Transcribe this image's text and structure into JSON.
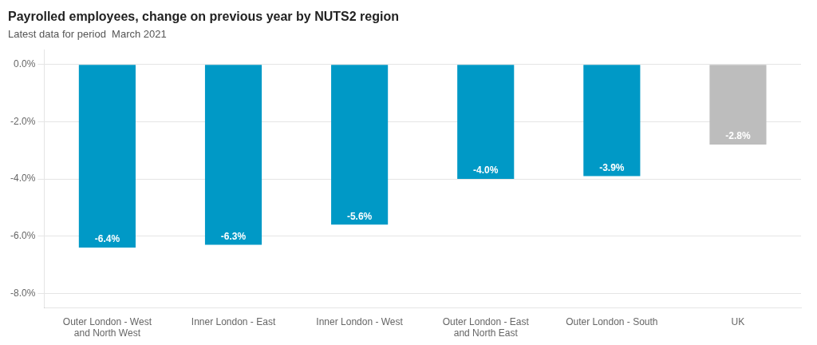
{
  "chart_data": {
    "type": "bar",
    "title": "Payrolled employees, change on previous year by NUTS2 region",
    "subtitle": "Latest data for period  March 2021",
    "categories": [
      "Outer London - West\nand North West",
      "Inner London - East",
      "Inner London - West",
      "Outer London - East\nand North East",
      "Outer London - South",
      "UK"
    ],
    "values": [
      -6.4,
      -6.3,
      -5.6,
      -4.0,
      -3.9,
      -2.8
    ],
    "value_labels": [
      "-6.4%",
      "-6.3%",
      "-5.6%",
      "-4.0%",
      "-3.9%",
      "-2.8%"
    ],
    "colors": [
      "#0099C6",
      "#0099C6",
      "#0099C6",
      "#0099C6",
      "#0099C6",
      "#BDBDBD"
    ],
    "ylim": [
      -8.5,
      0.5
    ],
    "yticks": [
      {
        "value": 0.0,
        "label": "0.0%"
      },
      {
        "value": -2.0,
        "label": "-2.0%"
      },
      {
        "value": -4.0,
        "label": "-4.0%"
      },
      {
        "value": -6.0,
        "label": "-6.0%"
      },
      {
        "value": -8.0,
        "label": "-8.0%"
      }
    ],
    "grid": true,
    "data_labels": true
  }
}
